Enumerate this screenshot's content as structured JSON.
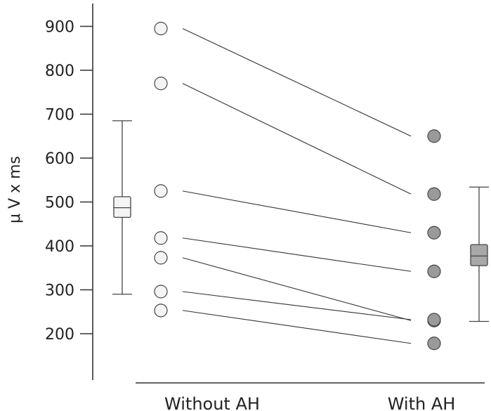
{
  "chart_data": {
    "type": "scatter",
    "title": "",
    "ylabel": "μ V x ms",
    "ylim": [
      100,
      950
    ],
    "yticks": [
      200,
      300,
      400,
      500,
      600,
      700,
      800,
      900
    ],
    "categories": [
      "Without AH",
      "With AH"
    ],
    "pairs": [
      {
        "without": 895,
        "with": 650
      },
      {
        "without": 770,
        "with": 518
      },
      {
        "without": 525,
        "with": 430
      },
      {
        "without": 418,
        "with": 342
      },
      {
        "without": 373,
        "with": 230
      },
      {
        "without": 296,
        "with": 232
      },
      {
        "without": 253,
        "with": 178
      }
    ],
    "boxes": [
      {
        "category": "Without AH",
        "whisker_low": 290,
        "q1": 465,
        "median": 487,
        "q3": 512,
        "whisker_high": 685,
        "fill": "#f4f4f4"
      },
      {
        "category": "With AH",
        "whisker_low": 228,
        "q1": 355,
        "median": 377,
        "q3": 403,
        "whisker_high": 534,
        "fill": "#a8a8a8"
      }
    ],
    "colors": {
      "without_point": "#f4f4f4",
      "with_point": "#9a9a9a",
      "line": "#333333"
    }
  }
}
